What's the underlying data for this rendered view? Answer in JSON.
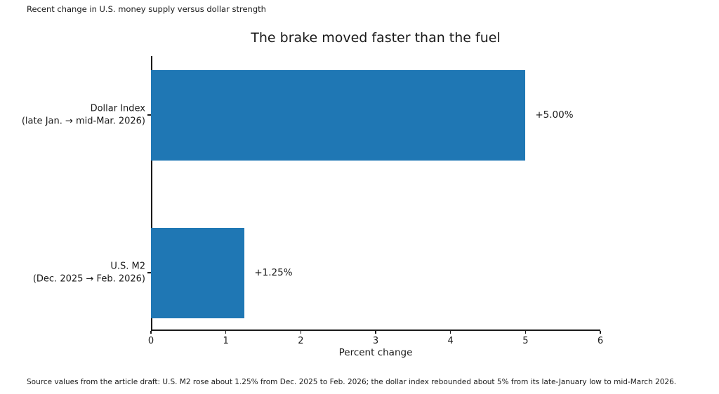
{
  "note": "Recent change in U.S. money supply versus dollar strength",
  "chart_data": {
    "type": "bar",
    "orientation": "horizontal",
    "title": "The brake moved faster than the fuel",
    "categories": [
      {
        "id": "dollar-index",
        "lines": [
          "Dollar Index",
          "(late Jan. → mid-Mar. 2026)"
        ]
      },
      {
        "id": "us-m2",
        "lines": [
          "U.S. M2",
          "(Dec. 2025 → Feb. 2026)"
        ]
      }
    ],
    "values": [
      5.0,
      1.25
    ],
    "value_labels": [
      "+5.00%",
      "+1.25%"
    ],
    "xlabel": "Percent change",
    "xlim": [
      0,
      6
    ],
    "xticks": [
      "0",
      "1",
      "2",
      "3",
      "4",
      "5",
      "6"
    ],
    "grid": false,
    "legend": "none",
    "colors": {
      "bar": "#1f77b4",
      "text": "#1a1a1a",
      "background": "#ffffff"
    }
  },
  "footer": "Source values from the article draft: U.S. M2 rose about 1.25% from Dec. 2025 to Feb. 2026; the dollar index rebounded about 5% from its late-January low to mid-March 2026."
}
